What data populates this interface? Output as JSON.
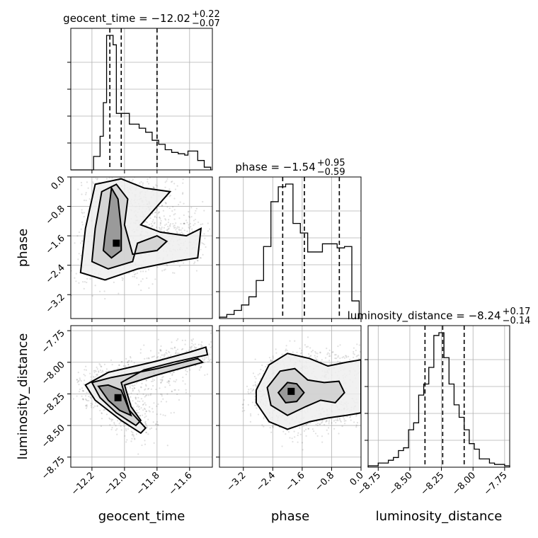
{
  "chart_data": {
    "type": "corner",
    "parameters": [
      {
        "name": "geocent_time",
        "title": "geocent_time = −12.02",
        "median_label": "−12.02",
        "plus_label": "+0.22",
        "minus_label": "−0.07",
        "range": [
          -12.33,
          -11.46
        ],
        "ticks": [
          -12.2,
          -12.0,
          -11.8,
          -11.6
        ],
        "tick_labels": [
          "−12.2",
          "−12.0",
          "−11.8",
          "−11.6"
        ],
        "quantiles": [
          -12.09,
          -12.02,
          -11.8
        ],
        "hist_bins": [
          -12.33,
          -12.31,
          -12.29,
          -12.27,
          -12.25,
          -12.23,
          -12.21,
          -12.19,
          -12.17,
          -12.15,
          -12.13,
          -12.11,
          -12.09,
          -12.07,
          -12.05,
          -12.03,
          -12.01,
          -11.99,
          -11.97,
          -11.95,
          -11.93,
          -11.91,
          -11.89,
          -11.87,
          -11.85,
          -11.83,
          -11.81,
          -11.79,
          -11.77,
          -11.75,
          -11.73,
          -11.71,
          -11.69,
          -11.67,
          -11.65,
          -11.63,
          -11.61,
          -11.59,
          -11.57,
          -11.55,
          -11.53,
          -11.51,
          -11.49,
          -11.47
        ],
        "hist_counts": [
          0,
          0,
          0,
          0,
          0,
          0,
          0,
          0.1,
          0.1,
          0.25,
          0.5,
          1.0,
          1.0,
          0.93,
          0.42,
          0.42,
          0.42,
          0.42,
          0.34,
          0.34,
          0.34,
          0.31,
          0.31,
          0.28,
          0.28,
          0.22,
          0.22,
          0.19,
          0.19,
          0.15,
          0.15,
          0.13,
          0.13,
          0.12,
          0.12,
          0.11,
          0.14,
          0.14,
          0.14,
          0.07,
          0.07,
          0.02,
          0.02
        ],
        "axis_label": "geocent_time"
      },
      {
        "name": "phase",
        "title": "phase = −1.54",
        "median_label": "−1.54",
        "plus_label": "+0.95",
        "minus_label": "−0.59",
        "range": [
          -3.85,
          0.0
        ],
        "ticks": [
          -3.2,
          -2.4,
          -1.6,
          -0.8,
          0.0
        ],
        "tick_labels": [
          "−3.2",
          "−2.4",
          "−1.6",
          "−0.8",
          "0.0"
        ],
        "quantiles": [
          -2.13,
          -1.54,
          -0.59
        ],
        "hist_bins": [
          -3.85,
          -3.65,
          -3.45,
          -3.25,
          -3.05,
          -2.85,
          -2.65,
          -2.45,
          -2.25,
          -2.05,
          -1.85,
          -1.65,
          -1.45,
          -1.25,
          -1.05,
          -0.85,
          -0.65,
          -0.45,
          -0.25,
          -0.05
        ],
        "hist_counts": [
          0.01,
          0.03,
          0.06,
          0.1,
          0.16,
          0.28,
          0.53,
          0.86,
          0.97,
          0.99,
          0.7,
          0.63,
          0.49,
          0.49,
          0.55,
          0.55,
          0.52,
          0.53,
          0.13
        ],
        "axis_label": "phase"
      },
      {
        "name": "luminosity_distance",
        "title": "luminosity_distance = −8.24",
        "median_label": "−8.24",
        "plus_label": "+0.17",
        "minus_label": "−0.14",
        "range": [
          -8.83,
          -7.71
        ],
        "ticks": [
          -8.75,
          -8.5,
          -8.25,
          -8.0,
          -7.75
        ],
        "tick_labels": [
          "−8.75",
          "−8.50",
          "−8.25",
          "−8.00",
          "−7.75"
        ],
        "quantiles": [
          -8.38,
          -8.24,
          -8.07
        ],
        "hist_bins": [
          -8.83,
          -8.79,
          -8.75,
          -8.71,
          -8.67,
          -8.63,
          -8.59,
          -8.55,
          -8.51,
          -8.47,
          -8.43,
          -8.39,
          -8.35,
          -8.31,
          -8.27,
          -8.23,
          -8.19,
          -8.15,
          -8.11,
          -8.07,
          -8.03,
          -7.99,
          -7.95,
          -7.91,
          -7.87,
          -7.83,
          -7.79,
          -7.75,
          -7.71
        ],
        "hist_counts": [
          0.01,
          0.01,
          0.03,
          0.03,
          0.05,
          0.07,
          0.12,
          0.14,
          0.27,
          0.32,
          0.52,
          0.6,
          0.72,
          0.95,
          0.97,
          0.79,
          0.6,
          0.45,
          0.36,
          0.27,
          0.17,
          0.13,
          0.06,
          0.06,
          0.03,
          0.02,
          0.02,
          0.01
        ],
        "axis_label": "luminosity_distance"
      }
    ],
    "panels_2d": [
      {
        "x_param": "geocent_time",
        "y_param": "phase",
        "peak": [
          -12.05,
          -1.8
        ],
        "contours": [
          [
            [
              -12.1,
              -1.0
            ],
            [
              -12.12,
              -1.6
            ],
            [
              -12.13,
              -2.0
            ],
            [
              -12.08,
              -2.2
            ],
            [
              -12.02,
              -2.0
            ],
            [
              -12.02,
              -1.4
            ],
            [
              -12.04,
              -0.6
            ],
            [
              -12.08,
              -0.3
            ],
            [
              -12.1,
              -1.0
            ]
          ],
          [
            [
              -12.14,
              -0.4
            ],
            [
              -12.18,
              -1.4
            ],
            [
              -12.2,
              -2.3
            ],
            [
              -12.1,
              -2.5
            ],
            [
              -11.95,
              -2.3
            ],
            [
              -11.92,
              -1.8
            ],
            [
              -11.8,
              -1.6
            ],
            [
              -11.74,
              -1.75
            ],
            [
              -11.8,
              -2.0
            ],
            [
              -11.95,
              -2.1
            ],
            [
              -12.0,
              -1.3
            ],
            [
              -11.98,
              -0.6
            ],
            [
              -12.05,
              -0.2
            ],
            [
              -12.14,
              -0.4
            ]
          ],
          [
            [
              -12.18,
              -0.2
            ],
            [
              -12.24,
              -1.4
            ],
            [
              -12.27,
              -2.6
            ],
            [
              -12.12,
              -2.8
            ],
            [
              -11.92,
              -2.5
            ],
            [
              -11.7,
              -2.3
            ],
            [
              -11.55,
              -2.2
            ],
            [
              -11.53,
              -1.4
            ],
            [
              -11.62,
              -1.6
            ],
            [
              -11.78,
              -1.5
            ],
            [
              -11.9,
              -1.3
            ],
            [
              -11.84,
              -1.0
            ],
            [
              -11.72,
              -0.4
            ],
            [
              -11.88,
              -0.3
            ],
            [
              -12.02,
              -0.05
            ],
            [
              -12.18,
              -0.2
            ]
          ]
        ]
      },
      {
        "x_param": "geocent_time",
        "y_param": "luminosity_distance",
        "peak": [
          -12.04,
          -8.28
        ],
        "contours": [
          [
            [
              -12.16,
              -8.19
            ],
            [
              -12.1,
              -8.18
            ],
            [
              -12.02,
              -8.22
            ],
            [
              -11.98,
              -8.35
            ],
            [
              -11.96,
              -8.42
            ],
            [
              -12.03,
              -8.38
            ],
            [
              -12.1,
              -8.3
            ],
            [
              -12.16,
              -8.19
            ]
          ],
          [
            [
              -12.2,
              -8.16
            ],
            [
              -12.08,
              -8.12
            ],
            [
              -11.8,
              -8.05
            ],
            [
              -11.55,
              -7.97
            ],
            [
              -11.52,
              -8.0
            ],
            [
              -11.8,
              -8.1
            ],
            [
              -12.0,
              -8.18
            ],
            [
              -11.96,
              -8.35
            ],
            [
              -11.9,
              -8.46
            ],
            [
              -11.93,
              -8.5
            ],
            [
              -12.05,
              -8.4
            ],
            [
              -12.15,
              -8.28
            ],
            [
              -12.2,
              -8.16
            ]
          ],
          [
            [
              -12.24,
              -8.18
            ],
            [
              -12.1,
              -8.08
            ],
            [
              -11.8,
              -7.99
            ],
            [
              -11.6,
              -7.92
            ],
            [
              -11.5,
              -7.88
            ],
            [
              -11.49,
              -7.94
            ],
            [
              -11.7,
              -8.0
            ],
            [
              -11.88,
              -8.06
            ],
            [
              -12.02,
              -8.16
            ],
            [
              -11.97,
              -8.38
            ],
            [
              -11.87,
              -8.52
            ],
            [
              -11.9,
              -8.56
            ],
            [
              -12.02,
              -8.46
            ],
            [
              -12.18,
              -8.3
            ],
            [
              -12.24,
              -8.18
            ]
          ]
        ]
      },
      {
        "x_param": "phase",
        "y_param": "luminosity_distance",
        "peak": [
          -1.9,
          -8.23
        ],
        "contours": [
          [
            [
              -2.25,
              -8.24
            ],
            [
              -2.0,
              -8.16
            ],
            [
              -1.75,
              -8.17
            ],
            [
              -1.55,
              -8.24
            ],
            [
              -1.75,
              -8.31
            ],
            [
              -2.05,
              -8.32
            ],
            [
              -2.25,
              -8.24
            ]
          ],
          [
            [
              -2.55,
              -8.2
            ],
            [
              -2.2,
              -8.07
            ],
            [
              -1.8,
              -8.05
            ],
            [
              -1.45,
              -8.14
            ],
            [
              -1.0,
              -8.16
            ],
            [
              -0.6,
              -8.15
            ],
            [
              -0.45,
              -8.24
            ],
            [
              -0.7,
              -8.32
            ],
            [
              -1.1,
              -8.3
            ],
            [
              -1.5,
              -8.35
            ],
            [
              -2.0,
              -8.42
            ],
            [
              -2.45,
              -8.34
            ],
            [
              -2.55,
              -8.2
            ]
          ],
          [
            [
              -2.85,
              -8.22
            ],
            [
              -2.5,
              -8.02
            ],
            [
              -2.0,
              -7.93
            ],
            [
              -1.4,
              -7.97
            ],
            [
              -0.9,
              -8.03
            ],
            [
              -0.4,
              -8.0
            ],
            [
              0.0,
              -7.98
            ],
            [
              0.0,
              -8.4
            ],
            [
              -0.4,
              -8.42
            ],
            [
              -0.9,
              -8.44
            ],
            [
              -1.4,
              -8.47
            ],
            [
              -2.0,
              -8.53
            ],
            [
              -2.5,
              -8.47
            ],
            [
              -2.85,
              -8.32
            ],
            [
              -2.85,
              -8.22
            ]
          ]
        ]
      }
    ],
    "grid": true
  }
}
